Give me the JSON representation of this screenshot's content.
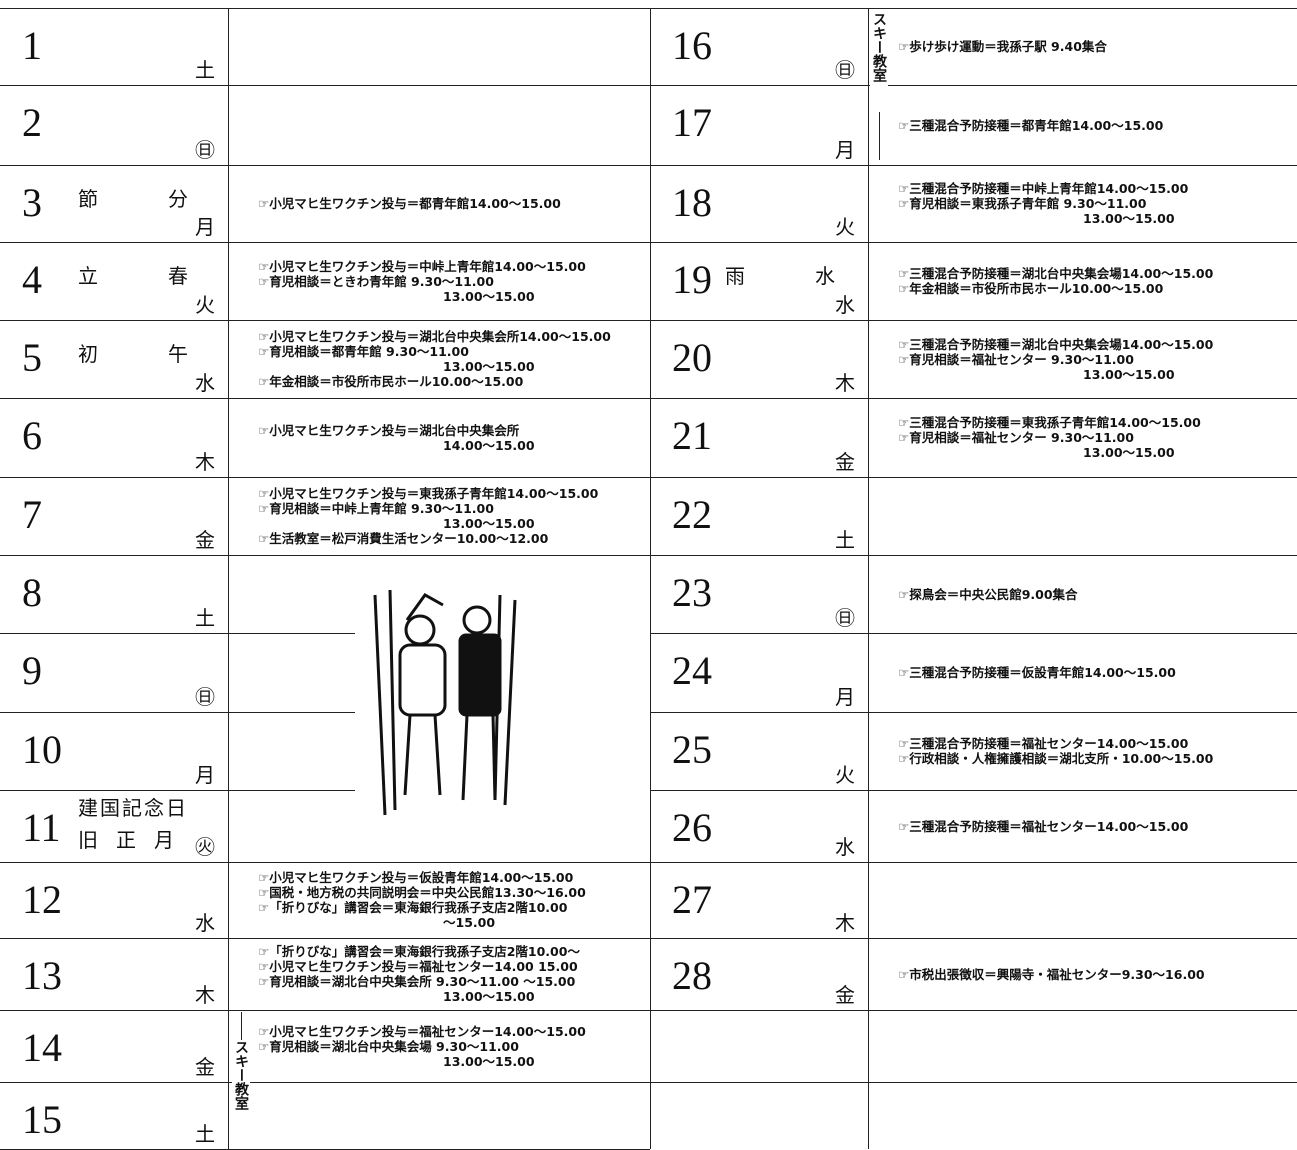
{
  "left_column": {
    "days": [
      {
        "day": "1",
        "weekday": "土",
        "holiday": [],
        "events": []
      },
      {
        "day": "2",
        "weekday": "㊐",
        "holiday": [],
        "events": []
      },
      {
        "day": "3",
        "weekday": "月",
        "holiday": [
          "節分"
        ],
        "events": [
          "☞小児マヒ生ワクチン投与＝都青年館14.00～15.00"
        ]
      },
      {
        "day": "4",
        "weekday": "火",
        "holiday": [
          "立春"
        ],
        "events": [
          "☞小児マヒ生ワクチン投与＝中峠上青年館14.00～15.00",
          "☞育児相談＝ときわ青年館 9.30～11.00",
          "13.00～15.00"
        ]
      },
      {
        "day": "5",
        "weekday": "水",
        "holiday": [
          "初午"
        ],
        "events": [
          "☞小児マヒ生ワクチン投与＝湖北台中央集会所14.00～15.00",
          "☞育児相談＝都青年館 9.30～11.00",
          "13.00～15.00",
          "☞年金相談＝市役所市民ホール10.00～15.00"
        ]
      },
      {
        "day": "6",
        "weekday": "木",
        "holiday": [],
        "events": [
          "☞小児マヒ生ワクチン投与＝湖北台中央集会所",
          "14.00～15.00"
        ]
      },
      {
        "day": "7",
        "weekday": "金",
        "holiday": [],
        "events": [
          "☞小児マヒ生ワクチン投与＝東我孫子青年館14.00～15.00",
          "☞育児相談＝中峠上青年館 9.30～11.00",
          "13.00～15.00",
          "☞生活教室＝松戸消費生活センター10.00～12.00"
        ]
      },
      {
        "day": "8",
        "weekday": "土",
        "holiday": [],
        "events": []
      },
      {
        "day": "9",
        "weekday": "㊐",
        "holiday": [],
        "events": []
      },
      {
        "day": "10",
        "weekday": "月",
        "holiday": [],
        "events": []
      },
      {
        "day": "11",
        "weekday": "㊋",
        "holiday": [
          "建国記念日",
          "旧正月"
        ],
        "events": []
      },
      {
        "day": "12",
        "weekday": "水",
        "holiday": [],
        "events": [
          "☞小児マヒ生ワクチン投与＝仮設青年館14.00～15.00",
          "☞国税・地方税の共同説明会＝中央公民館13.30～16.00",
          "☞「折りびな」講習会＝東海銀行我孫子支店2階10.00",
          "～15.00"
        ]
      },
      {
        "day": "13",
        "weekday": "木",
        "holiday": [],
        "events": [
          "☞「折りびな」講習会＝東海銀行我孫子支店2階10.00～",
          "☞小児マヒ生ワクチン投与＝福祉センター14.00 15.00",
          "☞育児相談＝湖北台中央集会所 9.30～11.00 ～15.00",
          "13.00～15.00"
        ]
      },
      {
        "day": "14",
        "weekday": "金",
        "holiday": [],
        "events": [
          "☞小児マヒ生ワクチン投与＝福祉センター14.00～15.00",
          "☞育児相談＝湖北台中央集会場 9.30～11.00",
          "13.00～15.00"
        ]
      },
      {
        "day": "15",
        "weekday": "土",
        "holiday": [],
        "events": []
      }
    ],
    "ski_label": "スキー教室"
  },
  "right_column": {
    "days": [
      {
        "day": "16",
        "weekday": "㊐",
        "holiday": [],
        "events": [
          "☞歩け歩け運動＝我孫子駅 9.40集合"
        ]
      },
      {
        "day": "17",
        "weekday": "月",
        "holiday": [],
        "events": [
          "☞三種混合予防接種＝都青年館14.00～15.00"
        ]
      },
      {
        "day": "18",
        "weekday": "火",
        "holiday": [],
        "events": [
          "☞三種混合予防接種＝中峠上青年館14.00～15.00",
          "☞育児相談＝東我孫子青年館 9.30～11.00",
          "13.00～15.00"
        ]
      },
      {
        "day": "19",
        "weekday": "水",
        "holiday": [
          "雨水"
        ],
        "events": [
          "☞三種混合予防接種＝湖北台中央集会場14.00～15.00",
          "☞年金相談＝市役所市民ホール10.00～15.00"
        ]
      },
      {
        "day": "20",
        "weekday": "木",
        "holiday": [],
        "events": [
          "☞三種混合予防接種＝湖北台中央集会場14.00～15.00",
          "☞育児相談＝福祉センター 9.30～11.00",
          "13.00～15.00"
        ]
      },
      {
        "day": "21",
        "weekday": "金",
        "holiday": [],
        "events": [
          "☞三種混合予防接種＝東我孫子青年館14.00～15.00",
          "☞育児相談＝福祉センター 9.30～11.00",
          "13.00～15.00"
        ]
      },
      {
        "day": "22",
        "weekday": "土",
        "holiday": [],
        "events": []
      },
      {
        "day": "23",
        "weekday": "㊐",
        "holiday": [],
        "events": [
          "☞探鳥会＝中央公民館9.00集合"
        ]
      },
      {
        "day": "24",
        "weekday": "月",
        "holiday": [],
        "events": [
          "☞三種混合予防接種＝仮設青年館14.00～15.00"
        ]
      },
      {
        "day": "25",
        "weekday": "火",
        "holiday": [],
        "events": [
          "☞三種混合予防接種＝福祉センター14.00～15.00",
          "☞行政相談・人権擁護相談＝湖北支所・10.00～15.00"
        ]
      },
      {
        "day": "26",
        "weekday": "水",
        "holiday": [],
        "events": [
          "☞三種混合予防接種＝福祉センター14.00～15.00"
        ]
      },
      {
        "day": "27",
        "weekday": "木",
        "holiday": [],
        "events": []
      },
      {
        "day": "28",
        "weekday": "金",
        "holiday": [],
        "events": [
          "☞市税出張徴収＝興陽寺・福祉センター9.30～16.00"
        ]
      }
    ],
    "ski_label": "スキー教室"
  }
}
